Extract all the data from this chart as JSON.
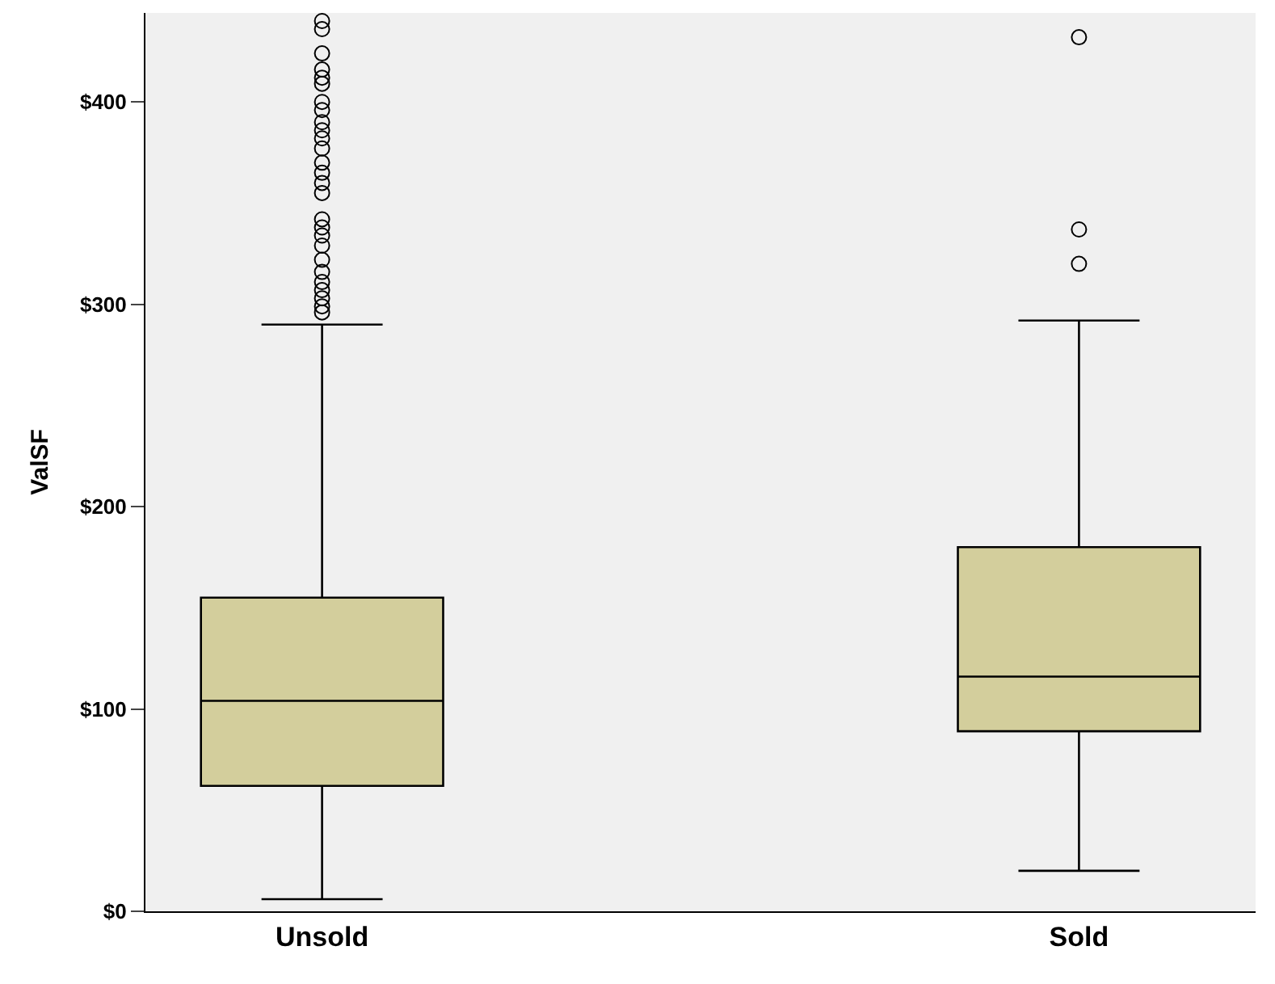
{
  "chart_data": {
    "type": "box",
    "ylabel": "ValSF",
    "categories": [
      "Unsold",
      "Sold"
    ],
    "color": "#d3ce9c",
    "boxes": [
      {
        "low": 6,
        "q1": 62,
        "median": 104,
        "q3": 155,
        "high": 290,
        "outliers": [
          440,
          436,
          424,
          416,
          412,
          409,
          400,
          396,
          390,
          386,
          382,
          377,
          370,
          365,
          360,
          355,
          342,
          338,
          334,
          329,
          322,
          316,
          311,
          307,
          303,
          299,
          296
        ]
      },
      {
        "low": 20,
        "q1": 89,
        "median": 116,
        "q3": 180,
        "high": 292,
        "outliers": [
          432,
          337,
          320
        ]
      }
    ],
    "ylim": [
      0,
      444
    ],
    "yticks": [
      {
        "value": 0,
        "label": "$0"
      },
      {
        "value": 100,
        "label": "$100"
      },
      {
        "value": 200,
        "label": "$200"
      },
      {
        "value": 300,
        "label": "$300"
      },
      {
        "value": 400,
        "label": "$400"
      }
    ],
    "grid": false,
    "marker": "circle"
  }
}
